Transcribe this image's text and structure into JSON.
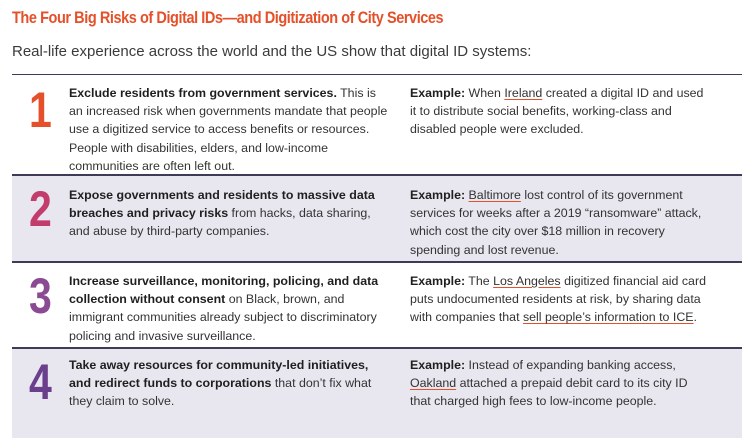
{
  "title": "The Four Big Risks of Digital IDs—and Digitization of City Services",
  "subtitle": "Real-life experience across the world and the US show that digital ID systems:",
  "colors": {
    "title": "#e4502a",
    "num1": "#e4502a",
    "num2": "#c23d6c",
    "num3": "#8b4b92",
    "num4": "#6a3f8c",
    "row_shade": "#e8e6ef",
    "rule": "#3f3b56",
    "link_underline": "#e4502a"
  },
  "rows": [
    {
      "number": "1",
      "risk_bold": "Exclude residents from government services.",
      "risk_rest": " This is an increased risk when governments mandate that people use a digitized service to access benefits or resources. People with disabilities, elders, and low-income communities are often left out.",
      "example_label": "Example:",
      "ex_a": " When ",
      "ex_link1": "Ireland",
      "ex_b": " created a digital ID and used it to distribute social benefits, working-class and disabled people were excluded.",
      "ex_link2": "",
      "ex_c": ""
    },
    {
      "number": "2",
      "risk_bold": "Expose governments and residents to massive data breaches and privacy risks",
      "risk_rest": " from hacks, data sharing, and abuse by third-party companies.",
      "example_label": "Example:",
      "ex_a": " ",
      "ex_link1": "Baltimore",
      "ex_b": " lost control of its government services for weeks after a 2019 “ransomware” attack, which cost the city over $18 million in recovery spending and lost revenue.",
      "ex_link2": "",
      "ex_c": ""
    },
    {
      "number": "3",
      "risk_bold": "Increase surveillance, monitoring, policing, and data collection without consent",
      "risk_rest": " on Black, brown, and immigrant communities already subject to discriminatory policing and invasive surveillance.",
      "example_label": "Example:",
      "ex_a": " The ",
      "ex_link1": "Los Angeles",
      "ex_b": " digitized financial aid card puts undocumented residents at risk, by sharing data with companies that ",
      "ex_link2": "sell people’s information to ICE",
      "ex_c": "."
    },
    {
      "number": "4",
      "risk_bold": "Take away resources for community-led initiatives, and redirect funds to corporations",
      "risk_rest": " that don’t fix what they claim to solve.",
      "example_label": "Example:",
      "ex_a": " Instead of expanding banking access, ",
      "ex_link1": "Oakland",
      "ex_b": " attached a prepaid debit card to its city ID that charged high fees to low-income people.",
      "ex_link2": "",
      "ex_c": ""
    }
  ]
}
